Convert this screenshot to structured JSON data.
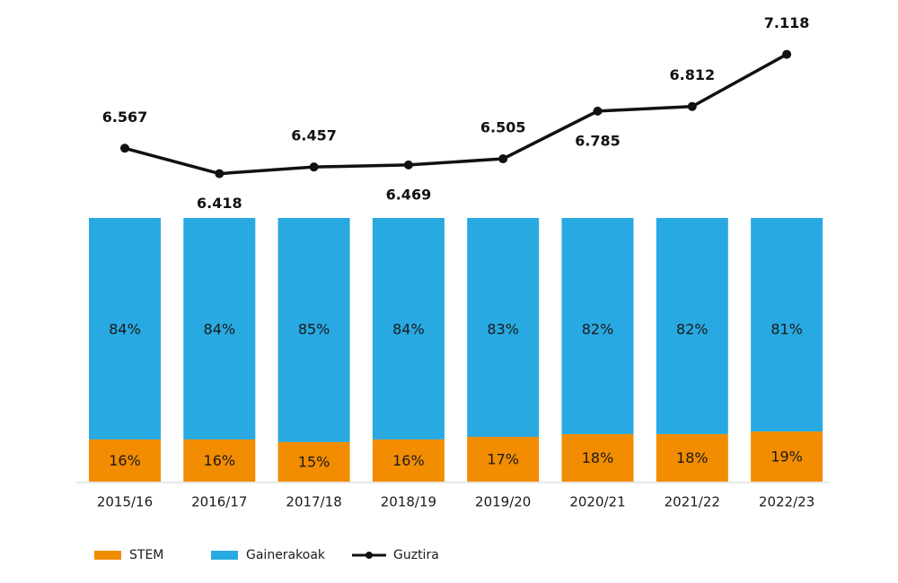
{
  "chart_data": {
    "type": "bar",
    "stacked": true,
    "categories": [
      "2015/16",
      "2016/17",
      "2017/18",
      "2018/19",
      "2019/20",
      "2020/21",
      "2021/22",
      "2022/23"
    ],
    "series": [
      {
        "name": "STEM",
        "kind": "bar",
        "color": "#F28C00",
        "values": [
          16,
          16,
          15,
          16,
          17,
          18,
          18,
          19
        ],
        "labels": [
          "16%",
          "16%",
          "15%",
          "16%",
          "17%",
          "18%",
          "18%",
          "19%"
        ]
      },
      {
        "name": "Gainerakoak",
        "kind": "bar",
        "color": "#29A9E1",
        "values": [
          84,
          84,
          85,
          84,
          83,
          82,
          82,
          81
        ],
        "labels": [
          "84%",
          "84%",
          "85%",
          "84%",
          "83%",
          "82%",
          "82%",
          "81%"
        ]
      },
      {
        "name": "Guztira",
        "kind": "line",
        "color": "#111111",
        "values": [
          6567,
          6418,
          6457,
          6469,
          6505,
          6785,
          6812,
          7118
        ],
        "labels": [
          "6.567",
          "6.418",
          "6.457",
          "6.469",
          "6.505",
          "6.785",
          "6.812",
          "7.118"
        ],
        "label_position": [
          "above",
          "below",
          "above",
          "below",
          "above",
          "below",
          "above",
          "above"
        ]
      }
    ],
    "legend": {
      "position": "bottom-left",
      "entries": [
        "STEM",
        "Gainerakoak",
        "Guztira"
      ]
    },
    "grid": false,
    "title": "",
    "xlabel": "",
    "ylabel": ""
  }
}
